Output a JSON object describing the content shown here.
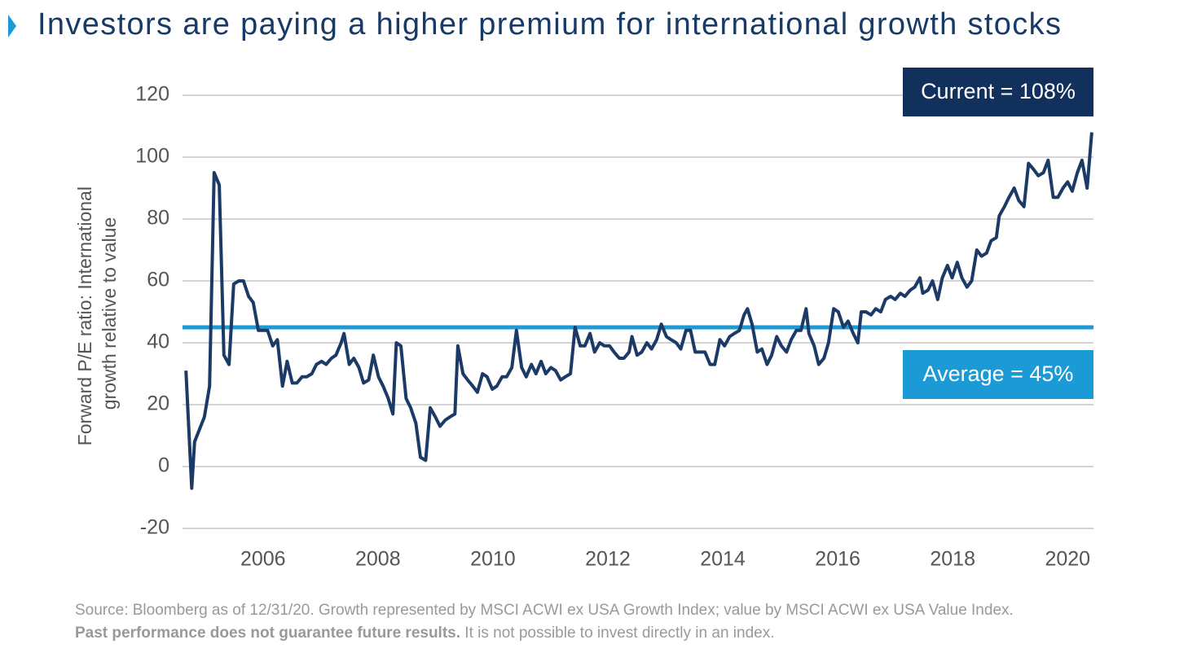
{
  "chart_data": {
    "type": "line",
    "title": "Investors are paying a higher premium for international growth stocks",
    "y_label": [
      "Forward P/E ratio: International",
      "growth relative to value"
    ],
    "color": "#1b3a66",
    "x": [
      2005.16,
      2005.26,
      2005.31,
      2005.48,
      2005.57,
      2005.65,
      2005.74,
      2005.82,
      2005.91,
      2005.99,
      2006.08,
      2006.16,
      2006.25,
      2006.33,
      2006.42,
      2006.5,
      2006.58,
      2006.67,
      2006.75,
      2006.84,
      2006.92,
      2007.01,
      2007.09,
      2007.18,
      2007.26,
      2007.35,
      2007.43,
      2007.52,
      2007.6,
      2007.69,
      2007.77,
      2007.86,
      2007.91,
      2008.0,
      2008.08,
      2008.17,
      2008.25,
      2008.34,
      2008.42,
      2008.51,
      2008.59,
      2008.68,
      2008.76,
      2008.82,
      2008.9,
      2008.99,
      2009.07,
      2009.16,
      2009.24,
      2009.33,
      2009.41,
      2009.5,
      2009.58,
      2009.67,
      2009.75,
      2009.84,
      2009.89,
      2009.98,
      2010.06,
      2010.15,
      2010.23,
      2010.32,
      2010.4,
      2010.49,
      2010.57,
      2010.66,
      2010.74,
      2010.83,
      2010.91,
      2011.0,
      2011.08,
      2011.17,
      2011.25,
      2011.34,
      2011.42,
      2011.51,
      2011.59,
      2011.68,
      2011.76,
      2011.85,
      2011.93,
      2012.02,
      2012.1,
      2012.19,
      2012.27,
      2012.36,
      2012.44,
      2012.53,
      2012.61,
      2012.7,
      2012.78,
      2012.87,
      2012.92,
      2013.01,
      2013.09,
      2013.18,
      2013.26,
      2013.35,
      2013.43,
      2013.52,
      2013.6,
      2013.69,
      2013.77,
      2013.86,
      2013.94,
      2014.02,
      2014.11,
      2014.19,
      2014.28,
      2014.36,
      2014.45,
      2014.53,
      2014.62,
      2014.7,
      2014.79,
      2014.87,
      2014.93,
      2015.01,
      2015.1,
      2015.18,
      2015.27,
      2015.35,
      2015.44,
      2015.52,
      2015.61,
      2015.69,
      2015.78,
      2015.86,
      2015.95,
      2016.0,
      2016.09,
      2016.17,
      2016.26,
      2016.34,
      2016.43,
      2016.51,
      2016.6,
      2016.68,
      2016.77,
      2016.85,
      2016.91,
      2016.99,
      2017.08,
      2017.16,
      2017.25,
      2017.33,
      2017.42,
      2017.5,
      2017.59,
      2017.67,
      2017.76,
      2017.84,
      2017.93,
      2017.98,
      2018.07,
      2018.15,
      2018.24,
      2018.32,
      2018.41,
      2018.49,
      2018.58,
      2018.66,
      2018.75,
      2018.83,
      2018.92,
      2019.0,
      2019.09,
      2019.17,
      2019.26,
      2019.31,
      2019.4,
      2019.48,
      2019.57,
      2019.65,
      2019.74,
      2019.82,
      2019.91,
      2019.99,
      2020.08,
      2020.16,
      2020.25,
      2020.33,
      2020.42,
      2020.5,
      2020.58,
      2020.67,
      2020.75,
      2020.84,
      2020.92
    ],
    "values": [
      31,
      -7,
      8,
      16,
      26,
      95,
      91,
      36,
      33,
      59,
      60,
      60,
      55,
      53,
      44,
      44,
      44,
      39,
      41,
      26,
      34,
      27,
      27,
      29,
      29,
      30,
      33,
      34,
      33,
      35,
      36,
      40,
      43,
      33,
      35,
      32,
      27,
      28,
      36,
      29,
      26,
      22,
      17,
      40,
      39,
      22,
      19,
      14,
      3,
      2,
      19,
      16,
      13,
      15,
      16,
      17,
      39,
      30,
      28,
      26,
      24,
      30,
      29,
      25,
      26,
      29,
      29,
      32,
      44,
      32,
      29,
      33,
      30,
      34,
      30,
      32,
      31,
      28,
      29,
      30,
      45,
      39,
      39,
      43,
      37,
      40,
      39,
      39,
      37,
      35,
      35,
      37,
      42,
      36,
      37,
      40,
      38,
      41,
      46,
      42,
      41,
      40,
      38,
      44,
      44,
      37,
      37,
      37,
      33,
      33,
      41,
      39,
      42,
      43,
      44,
      49,
      51,
      46,
      37,
      38,
      33,
      36,
      42,
      39,
      37,
      41,
      44,
      44,
      51,
      43,
      39,
      33,
      35,
      40,
      51,
      50,
      45,
      47,
      43,
      40,
      50,
      50,
      49,
      51,
      50,
      54,
      55,
      54,
      56,
      55,
      57,
      58,
      61,
      56,
      57,
      60,
      54,
      61,
      65,
      61,
      66,
      61,
      58,
      60,
      70,
      68,
      69,
      73,
      74,
      81,
      84,
      87,
      90,
      86,
      84,
      98,
      96,
      94,
      95,
      99,
      87,
      87,
      90,
      92,
      89,
      95,
      99,
      90,
      108
    ],
    "xlim": [
      2005.1,
      2020.95
    ],
    "xticks": [
      {
        "value": 2006.5,
        "label": "2006"
      },
      {
        "value": 2008.5,
        "label": "2008"
      },
      {
        "value": 2010.5,
        "label": "2010"
      },
      {
        "value": 2012.5,
        "label": "2012"
      },
      {
        "value": 2014.5,
        "label": "2014"
      },
      {
        "value": 2016.5,
        "label": "2016"
      },
      {
        "value": 2018.5,
        "label": "2018"
      },
      {
        "value": 2020.5,
        "label": "2020"
      }
    ],
    "ylim": [
      -20,
      120
    ],
    "yticks": [
      -20,
      0,
      20,
      40,
      60,
      80,
      100,
      120
    ],
    "grid": true,
    "reference_line": {
      "value": 45,
      "color": "#1c9ad6"
    },
    "annotations": [
      {
        "text": "Current = 108%",
        "color": "#11305c"
      },
      {
        "text": "Average = 45%",
        "color": "#1c9ad6"
      }
    ],
    "source": "Source: Bloomberg as of 12/31/20. Growth represented by MSCI ACWI ex USA Growth Index; value by MSCI ACWI ex USA Value Index.",
    "note_bold": "Past performance does not guarantee future results.",
    "note": " It is not possible to invest directly in an index."
  }
}
